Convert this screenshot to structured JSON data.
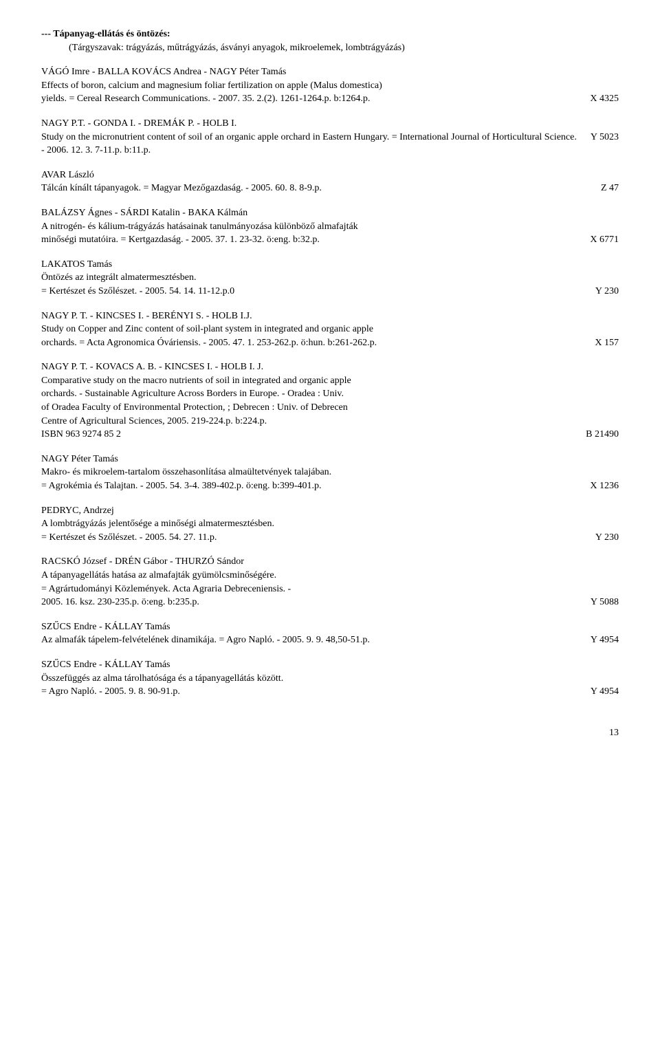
{
  "section": {
    "title": "--- Tápanyag-ellátás és öntözés:",
    "keywords": "(Tárgyszavak: trágyázás, műtrágyázás, ásványi anyagok, mikroelemek, lombtrágyázás)"
  },
  "entries": [
    {
      "lines": [
        {
          "text": "VÁGÓ Imre - BALLA KOVÁCS Andrea - NAGY Péter Tamás",
          "code": ""
        },
        {
          "text": "Effects of boron, calcium and magnesium foliar fertilization on apple (Malus domestica)",
          "code": ""
        },
        {
          "text": "yields. = Cereal Research Communications. - 2007. 35. 2.(2). 1261-1264.p. b:1264.p.",
          "code": "X 4325"
        }
      ]
    },
    {
      "lines": [
        {
          "text": "NAGY P.T. - GONDA I. - DREMÁK P. - HOLB I.",
          "code": ""
        },
        {
          "text": "Study on the micronutrient content of soil of an organic apple orchard in Eastern Hungary. = International Journal of Horticultural Science. - 2006. 12. 3. 7-11.p. b:11.p.",
          "code": "Y 5023"
        }
      ]
    },
    {
      "lines": [
        {
          "text": "AVAR László",
          "code": ""
        },
        {
          "text": "Tálcán kínált tápanyagok. = Magyar Mezőgazdaság. - 2005. 60. 8. 8-9.p.",
          "code": "Z 47"
        }
      ]
    },
    {
      "lines": [
        {
          "text": "BALÁZSY Ágnes - SÁRDI Katalin - BAKA Kálmán",
          "code": ""
        },
        {
          "text": "A nitrogén- és kálium-trágyázás hatásainak tanulmányozása különböző almafajták",
          "code": ""
        },
        {
          "text": "minőségi mutatóira. = Kertgazdaság. - 2005. 37. 1. 23-32. ö:eng. b:32.p.",
          "code": "X 6771"
        }
      ]
    },
    {
      "lines": [
        {
          "text": "LAKATOS Tamás",
          "code": ""
        },
        {
          "text": "Öntözés az integrált almatermesztésben.",
          "code": ""
        },
        {
          "text": "= Kertészet és Szőlészet. - 2005. 54. 14. 11-12.p.0",
          "code": "Y 230"
        }
      ]
    },
    {
      "lines": [
        {
          "text": "NAGY P. T. - KINCSES I. - BERÉNYI S. - HOLB I.J.",
          "code": ""
        },
        {
          "text": "Study on Copper and Zinc content of soil-plant system in integrated and organic apple",
          "code": ""
        },
        {
          "text": "orchards. = Acta Agronomica Óváriensis. - 2005. 47. 1. 253-262.p. ö:hun. b:261-262.p.",
          "code": "X 157"
        }
      ]
    },
    {
      "lines": [
        {
          "text": "NAGY P. T. - KOVACS A. B. - KINCSES I. - HOLB I. J.",
          "code": ""
        },
        {
          "text": "Comparative study on the macro nutrients of soil in integrated and organic apple",
          "code": ""
        },
        {
          "text": "orchards. - Sustainable Agriculture Across Borders in Europe. - Oradea : Univ.",
          "code": ""
        },
        {
          "text": "of Oradea Faculty of Environmental Protection, ; Debrecen : Univ. of Debrecen",
          "code": ""
        },
        {
          "text": "Centre of Agricultural Sciences, 2005. 219-224.p. b:224.p.",
          "code": ""
        },
        {
          "text": "ISBN 963 9274 85 2",
          "code": "B 21490"
        }
      ]
    },
    {
      "lines": [
        {
          "text": "NAGY Péter Tamás",
          "code": ""
        },
        {
          "text": "Makro- és mikroelem-tartalom összehasonlítása almaültetvények talajában.",
          "code": ""
        },
        {
          "text": "= Agrokémia és Talajtan. - 2005. 54. 3-4. 389-402.p. ö:eng. b:399-401.p.",
          "code": "X 1236"
        }
      ]
    },
    {
      "lines": [
        {
          "text": "PEDRYC, Andrzej",
          "code": ""
        },
        {
          "text": "A lombtrágyázás jelentősége a minőségi almatermesztésben.",
          "code": ""
        },
        {
          "text": "= Kertészet és Szőlészet. - 2005. 54. 27. 11.p.",
          "code": "Y 230"
        }
      ]
    },
    {
      "lines": [
        {
          "text": "RACSKÓ József - DRÉN Gábor - THURZÓ Sándor",
          "code": ""
        },
        {
          "text": "A tápanyagellátás hatása az almafajták gyümölcsminőségére.",
          "code": ""
        },
        {
          "text": "= Agrártudományi Közlemények. Acta Agraria Debreceniensis. -",
          "code": ""
        },
        {
          "text": "2005. 16. ksz. 230-235.p. ö:eng. b:235.p.",
          "code": "Y 5088"
        }
      ]
    },
    {
      "lines": [
        {
          "text": "SZŰCS Endre - KÁLLAY Tamás",
          "code": ""
        },
        {
          "text": "Az almafák tápelem-felvételének dinamikája. = Agro Napló. - 2005. 9. 9. 48,50-51.p.",
          "code": "Y 4954"
        }
      ]
    },
    {
      "lines": [
        {
          "text": "SZŰCS Endre - KÁLLAY Tamás",
          "code": ""
        },
        {
          "text": "Összefüggés az alma tárolhatósága és a tápanyagellátás között.",
          "code": ""
        },
        {
          "text": "= Agro Napló. - 2005. 9. 8. 90-91.p.",
          "code": "Y 4954"
        }
      ]
    }
  ],
  "pageNumber": "13"
}
